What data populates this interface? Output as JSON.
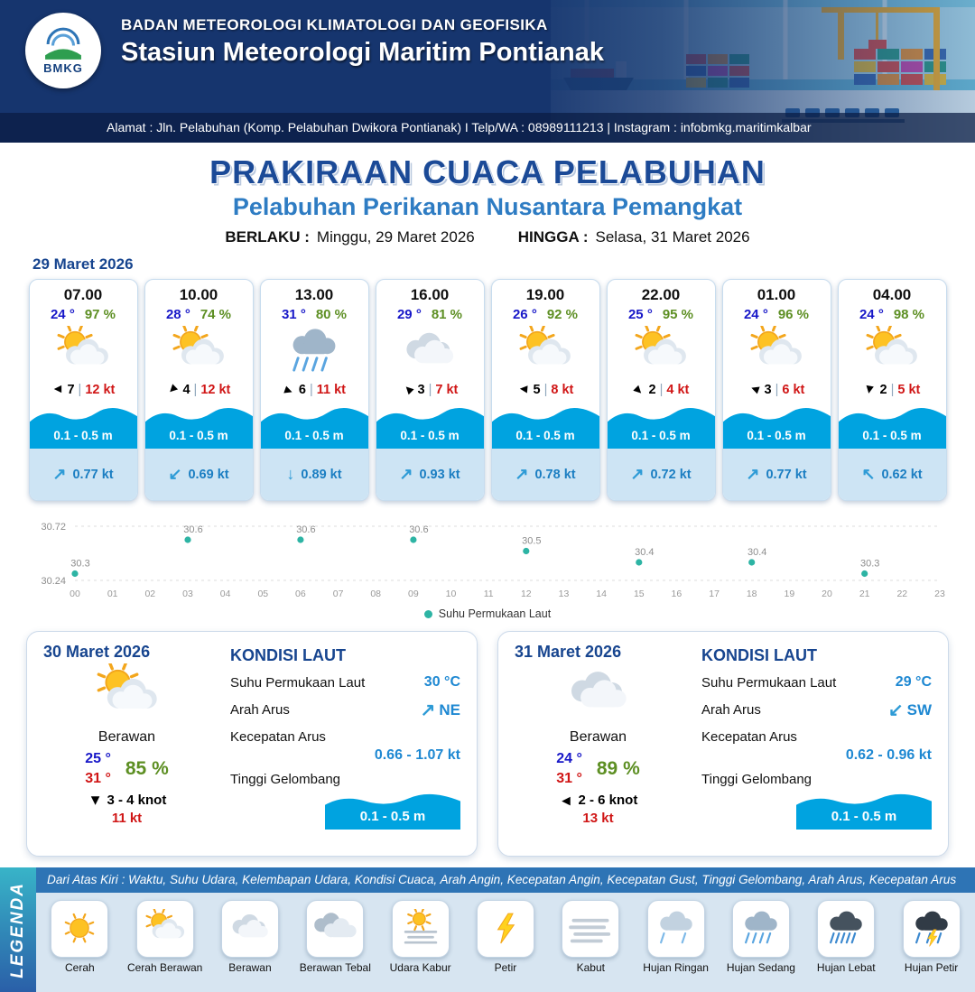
{
  "header": {
    "logo_text": "BMKG",
    "agency": "BADAN METEOROLOGI KLIMATOLOGI DAN GEOFISIKA",
    "station": "Stasiun Meteorologi Maritim Pontianak",
    "address": "Alamat : Jln. Pelabuhan (Komp. Pelabuhan Dwikora Pontianak) I Telp/WA : 08989111213 | Instagram : infobmkg.maritimkalbar"
  },
  "title": {
    "main": "PRAKIRAAN CUACA PELABUHAN",
    "subtitle": "Pelabuhan Perikanan Nusantara Pemangkat",
    "valid_from_label": "BERLAKU :",
    "valid_from": "Minggu, 29 Maret 2026",
    "valid_to_label": "HINGGA :",
    "valid_to": "Selasa, 31 Maret 2026"
  },
  "forecast_date": "29 Maret 2026",
  "hourly": [
    {
      "time": "07.00",
      "temp": "24 °",
      "rh": "97 %",
      "icon": "cerah-berawan",
      "wind_deg": 180,
      "wind": "7",
      "gust": "12 kt",
      "wave": "0.1 - 0.5 m",
      "current_arrow": "↗",
      "current": "0.77 kt"
    },
    {
      "time": "10.00",
      "temp": "28 °",
      "rh": "74 %",
      "icon": "cerah-berawan",
      "wind_deg": 135,
      "wind": "4",
      "gust": "12 kt",
      "wave": "0.1 - 0.5 m",
      "current_arrow": "↙",
      "current": "0.69 kt"
    },
    {
      "time": "13.00",
      "temp": "31 °",
      "rh": "80 %",
      "icon": "hujan-sedang",
      "wind_deg": 20,
      "wind": "6",
      "gust": "11 kt",
      "wave": "0.1 - 0.5 m",
      "current_arrow": "↓",
      "current": "0.89 kt"
    },
    {
      "time": "16.00",
      "temp": "29 °",
      "rh": "81 %",
      "icon": "berawan",
      "wind_deg": 225,
      "wind": "3",
      "gust": "7 kt",
      "wave": "0.1 - 0.5 m",
      "current_arrow": "↗",
      "current": "0.93 kt"
    },
    {
      "time": "19.00",
      "temp": "26 °",
      "rh": "92 %",
      "icon": "cerah-berawan",
      "wind_deg": 185,
      "wind": "5",
      "gust": "8 kt",
      "wave": "0.1 - 0.5 m",
      "current_arrow": "↗",
      "current": "0.78 kt"
    },
    {
      "time": "22.00",
      "temp": "25 °",
      "rh": "95 %",
      "icon": "cerah-berawan",
      "wind_deg": 45,
      "wind": "2",
      "gust": "4 kt",
      "wave": "0.1 - 0.5 m",
      "current_arrow": "↗",
      "current": "0.72 kt"
    },
    {
      "time": "01.00",
      "temp": "24 °",
      "rh": "96 %",
      "icon": "cerah-berawan",
      "wind_deg": 200,
      "wind": "3",
      "gust": "6 kt",
      "wave": "0.1 - 0.5 m",
      "current_arrow": "↗",
      "current": "0.77 kt"
    },
    {
      "time": "04.00",
      "temp": "24 °",
      "rh": "98 %",
      "icon": "cerah-berawan",
      "wind_deg": 100,
      "wind": "2",
      "gust": "5 kt",
      "wave": "0.1 - 0.5 m",
      "current_arrow": "↖",
      "current": "0.62 kt"
    }
  ],
  "chart_data": {
    "type": "scatter",
    "series_name": "Suhu Permukaan Laut",
    "x": [
      0,
      3,
      6,
      9,
      12,
      15,
      18,
      21
    ],
    "values": [
      30.3,
      30.6,
      30.6,
      30.6,
      30.5,
      30.4,
      30.4,
      30.3
    ],
    "ylim": [
      30.24,
      30.72
    ],
    "y_ticks": [
      "30.72",
      "30.24"
    ],
    "x_tick_count": 24,
    "point_color": "#2db4a4",
    "legend_position": "bottom-center",
    "grid": "dotted horizontal at ylim"
  },
  "days": [
    {
      "date": "30 Maret 2026",
      "icon": "cerah-berawan",
      "condition": "Berawan",
      "tmin": "25 °",
      "tmax": "31 °",
      "rh": "85 %",
      "wind_deg": 90,
      "wind_range": "3  - 4 knot",
      "gust": "11 kt",
      "sea": {
        "heading": "KONDISI LAUT",
        "sst_label": "Suhu Permukaan Laut",
        "sst": "30 °C",
        "dir_label": "Arah Arus",
        "dir": "NE",
        "dir_arrow": "↗",
        "speed_label": "Kecepatan Arus",
        "speed": "0.66 - 1.07 kt",
        "wave_label": "Tinggi Gelombang",
        "wave": "0.1 - 0.5 m"
      }
    },
    {
      "date": "31 Maret 2026",
      "icon": "berawan",
      "condition": "Berawan",
      "tmin": "24 °",
      "tmax": "31 °",
      "rh": "89 %",
      "wind_deg": 180,
      "wind_range": "2  - 6 knot",
      "gust": "13 kt",
      "sea": {
        "heading": "KONDISI LAUT",
        "sst_label": "Suhu Permukaan Laut",
        "sst": "29 °C",
        "dir_label": "Arah Arus",
        "dir": "SW",
        "dir_arrow": "↙",
        "speed_label": "Kecepatan Arus",
        "speed": "0.62 - 0.96 kt",
        "wave_label": "Tinggi Gelombang",
        "wave": "0.1 - 0.5 m"
      }
    }
  ],
  "legend": {
    "title": "LEGENDA",
    "description": "Dari Atas Kiri : Waktu, Suhu Udara, Kelembapan Udara, Kondisi Cuaca, Arah Angin, Kecepatan Angin, Kecepatan Gust, Tinggi Gelombang, Arah Arus, Kecepatan Arus",
    "items": [
      {
        "label": "Cerah",
        "icon": "cerah"
      },
      {
        "label": "Cerah Berawan",
        "icon": "cerah-berawan"
      },
      {
        "label": "Berawan",
        "icon": "berawan"
      },
      {
        "label": "Berawan Tebal",
        "icon": "berawan-tebal"
      },
      {
        "label": "Udara Kabur",
        "icon": "udara-kabur"
      },
      {
        "label": "Petir",
        "icon": "petir"
      },
      {
        "label": "Kabut",
        "icon": "kabut"
      },
      {
        "label": "Hujan Ringan",
        "icon": "hujan-ringan"
      },
      {
        "label": "Hujan Sedang",
        "icon": "hujan-sedang"
      },
      {
        "label": "Hujan Lebat",
        "icon": "hujan-lebat"
      },
      {
        "label": "Hujan Petir",
        "icon": "hujan-petir"
      }
    ]
  }
}
